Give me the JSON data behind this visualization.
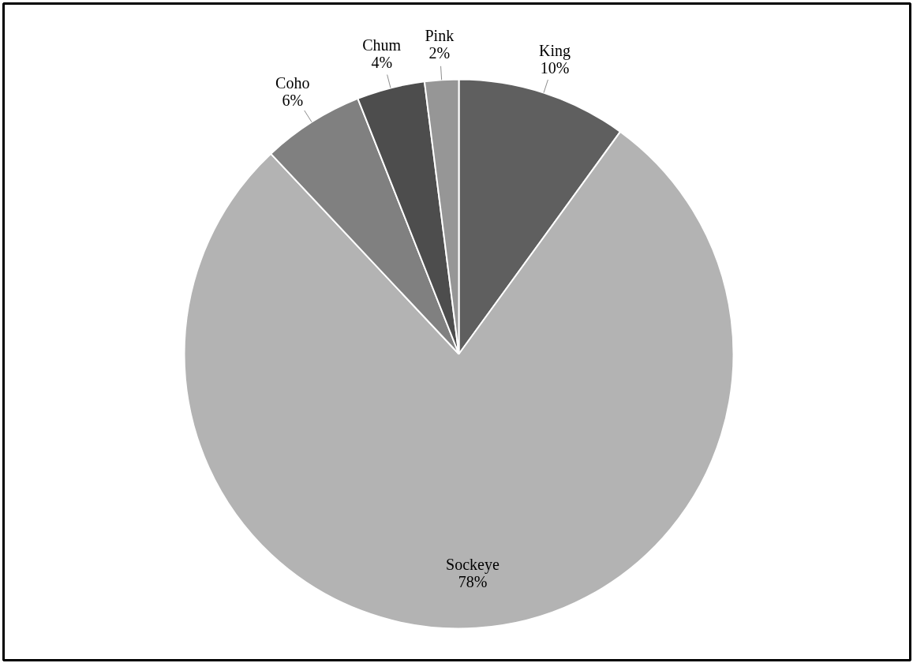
{
  "chart_data": {
    "type": "pie",
    "categories": [
      "King",
      "Sockeye",
      "Coho",
      "Chum",
      "Pink"
    ],
    "values": [
      10,
      78,
      6,
      4,
      2
    ],
    "colors": [
      "#5f5f5f",
      "#b3b3b3",
      "#808080",
      "#4d4d4d",
      "#969696"
    ],
    "value_labels": [
      "10%",
      "78%",
      "6%",
      "4%",
      "2%"
    ]
  }
}
